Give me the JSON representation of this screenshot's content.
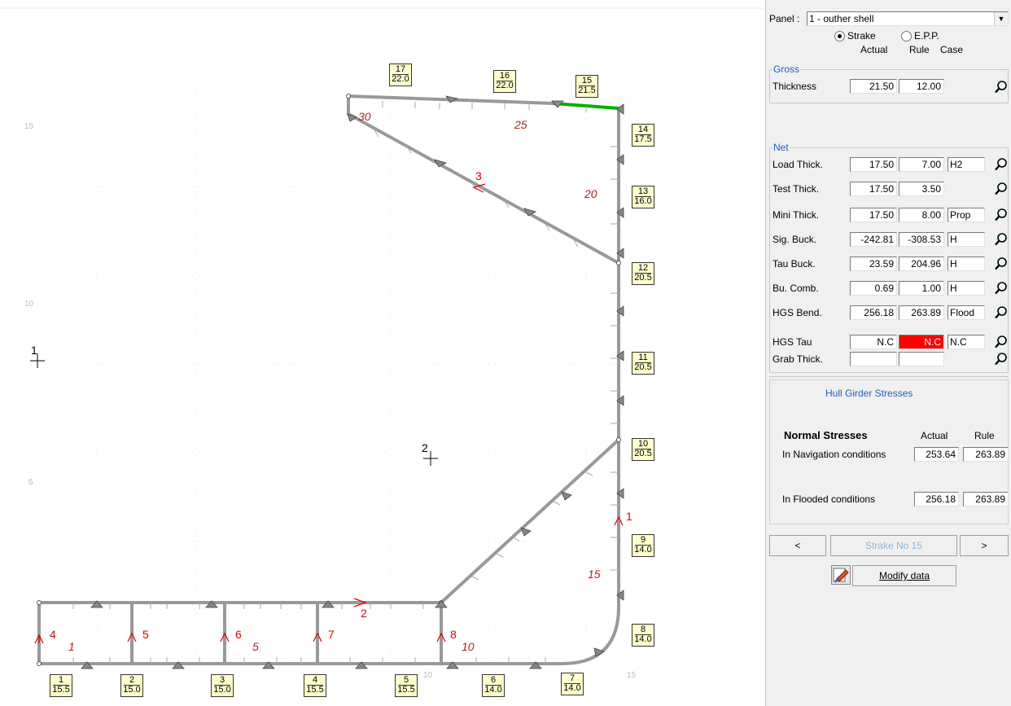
{
  "panel_selector": {
    "label": "Panel :",
    "value": "1 - outher shell"
  },
  "mode": {
    "strake_label": "Strake",
    "epp_label": "E.P.P.",
    "selected": "Strake"
  },
  "columns": {
    "actual": "Actual",
    "rule": "Rule",
    "case": "Case"
  },
  "gross": {
    "title": "Gross",
    "rows": [
      {
        "label": "Thickness",
        "actual": "21.50",
        "rule": "12.00",
        "case": ""
      }
    ]
  },
  "net": {
    "title": "Net",
    "rows": [
      {
        "label": "Load Thick.",
        "actual": "17.50",
        "rule": "7.00",
        "case": "H2"
      },
      {
        "label": "Test Thick.",
        "actual": "17.50",
        "rule": "3.50",
        "case": ""
      },
      {
        "label": "Mini Thick.",
        "actual": "17.50",
        "rule": "8.00",
        "case": "Prop"
      },
      {
        "label": "Sig. Buck.",
        "actual": "-242.81",
        "rule": "-308.53",
        "case": "H"
      },
      {
        "label": "Tau Buck.",
        "actual": "23.59",
        "rule": "204.96",
        "case": "H"
      },
      {
        "label": "Bu. Comb.",
        "actual": "0.69",
        "rule": "1.00",
        "case": "H"
      },
      {
        "label": "HGS Bend.",
        "actual": "256.18",
        "rule": "263.89",
        "case": "Flood"
      },
      {
        "label": "HGS Tau",
        "actual": "N.C",
        "rule": "N.C",
        "case": "N.C"
      },
      {
        "label": "Grab Thick.",
        "actual": "",
        "rule": "",
        "case": ""
      }
    ]
  },
  "hull_girder": {
    "title": "Hull Girder Stresses",
    "normal_label": "Normal Stresses",
    "actual_label": "Actual",
    "rule_label": "Rule",
    "nav_label": "In Navigation conditions",
    "nav_actual": "253.64",
    "nav_rule": "263.89",
    "flood_label": "In Flooded conditions",
    "flood_actual": "256.18",
    "flood_rule": "263.89"
  },
  "nav": {
    "prev": "<",
    "current": "Strake No 15",
    "next": ">"
  },
  "modify_label": "Modify data",
  "drawing": {
    "strakes": [
      {
        "no": "1",
        "t": "15.5"
      },
      {
        "no": "2",
        "t": "15.0"
      },
      {
        "no": "3",
        "t": "15.0"
      },
      {
        "no": "4",
        "t": "15.5"
      },
      {
        "no": "5",
        "t": "15.5"
      },
      {
        "no": "6",
        "t": "14.0"
      },
      {
        "no": "7",
        "t": "14.0"
      },
      {
        "no": "8",
        "t": "14.0"
      },
      {
        "no": "9",
        "t": "14.0"
      },
      {
        "no": "10",
        "t": "20.5"
      },
      {
        "no": "11",
        "t": "20.5"
      },
      {
        "no": "12",
        "t": "20.5"
      },
      {
        "no": "13",
        "t": "16.0"
      },
      {
        "no": "14",
        "t": "17.5"
      },
      {
        "no": "15",
        "t": "21.5"
      },
      {
        "no": "16",
        "t": "22.0"
      },
      {
        "no": "17",
        "t": "22.0"
      }
    ],
    "panel_numbers": [
      "1",
      "5",
      "10",
      "15",
      "20",
      "25",
      "30"
    ],
    "red_labels": [
      "1",
      "2",
      "3",
      "4",
      "5",
      "6",
      "7",
      "8"
    ],
    "centers": [
      "1",
      "2"
    ],
    "axis_ticks": [
      "15",
      "10",
      "5",
      "10",
      "15"
    ],
    "colors": {
      "structure": "#999999",
      "selected": "#00b000",
      "box_fill": "#ffffcc",
      "red": "#e00000",
      "alert": "#ff0000"
    }
  }
}
